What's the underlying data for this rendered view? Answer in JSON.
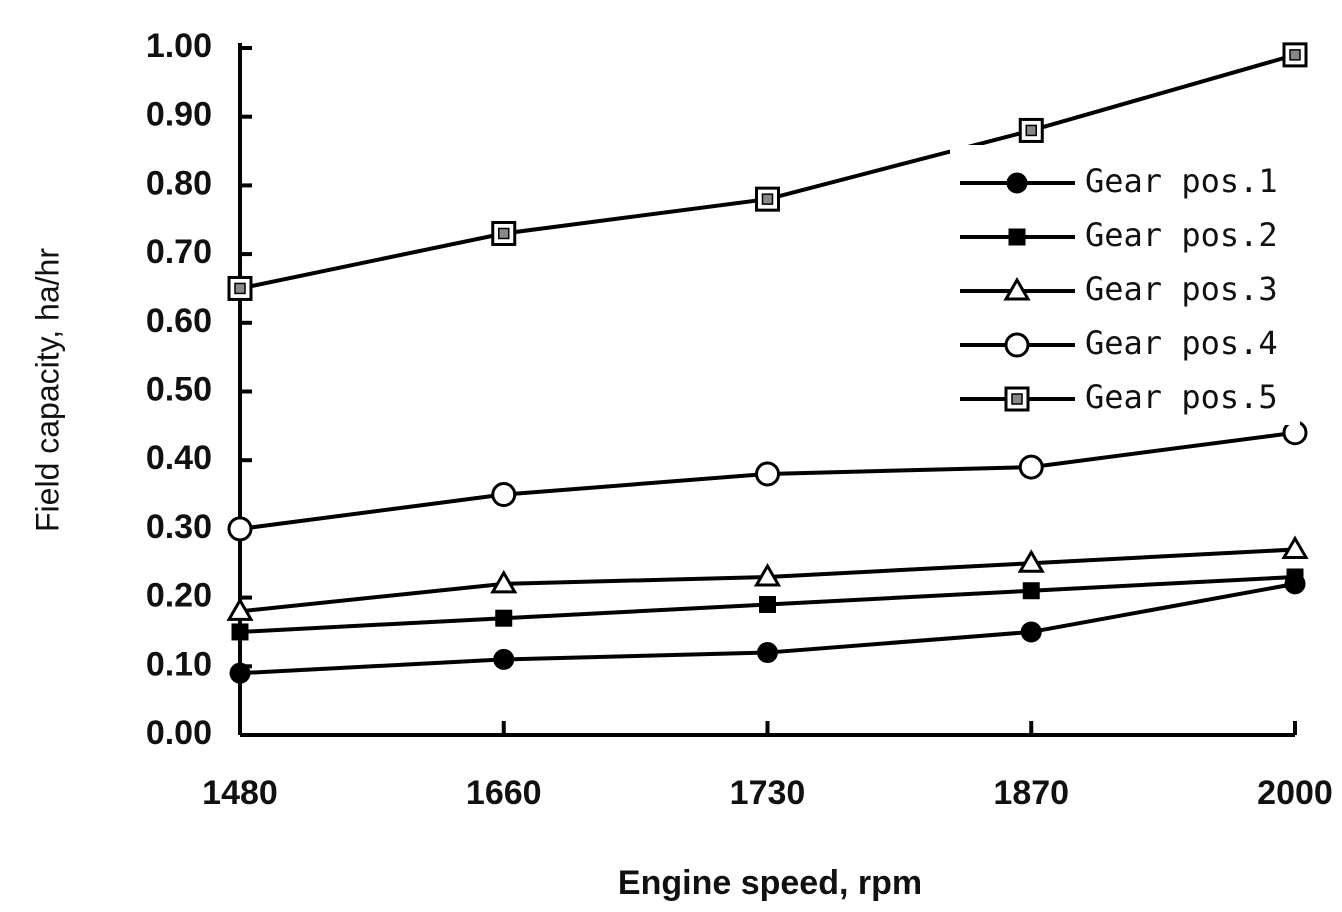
{
  "chart_data": {
    "type": "line",
    "x_label": "Engine speed, rpm",
    "y_label": "Field capacity, ha/hr",
    "categories": [
      "1480",
      "1660",
      "1730",
      "1870",
      "2000"
    ],
    "series": [
      {
        "name": "Gear pos.1",
        "color": "#000000",
        "marker": "filled-circle",
        "values": [
          0.09,
          0.11,
          0.12,
          0.15,
          0.22
        ]
      },
      {
        "name": "Gear pos.2",
        "color": "#000000",
        "marker": "filled-square",
        "values": [
          0.15,
          0.17,
          0.19,
          0.21,
          0.23
        ]
      },
      {
        "name": "Gear pos.3",
        "color": "#000000",
        "marker": "open-triangle",
        "values": [
          0.18,
          0.22,
          0.23,
          0.25,
          0.27
        ]
      },
      {
        "name": "Gear pos.4",
        "color": "#000000",
        "marker": "open-circle",
        "values": [
          0.3,
          0.35,
          0.38,
          0.39,
          0.44
        ]
      },
      {
        "name": "Gear pos.5",
        "color": "#000000",
        "marker": "open-square",
        "values": [
          0.65,
          0.73,
          0.78,
          0.88,
          0.99
        ]
      }
    ],
    "ylim": [
      0,
      1
    ],
    "yticks": [
      {
        "value": 0,
        "label": "0.00"
      },
      {
        "value": 0.1,
        "label": "0.10"
      },
      {
        "value": 0.2,
        "label": "0.20"
      },
      {
        "value": 0.3,
        "label": "0.30"
      },
      {
        "value": 0.4,
        "label": "0.40"
      },
      {
        "value": 0.5,
        "label": "0.50"
      },
      {
        "value": 0.6,
        "label": "0.60"
      },
      {
        "value": 0.7,
        "label": "0.70"
      },
      {
        "value": 0.8,
        "label": "0.80"
      },
      {
        "value": 0.9,
        "label": "0.90"
      },
      {
        "value": 1,
        "label": "1.00"
      }
    ],
    "grid": false,
    "legend": "upper right"
  }
}
